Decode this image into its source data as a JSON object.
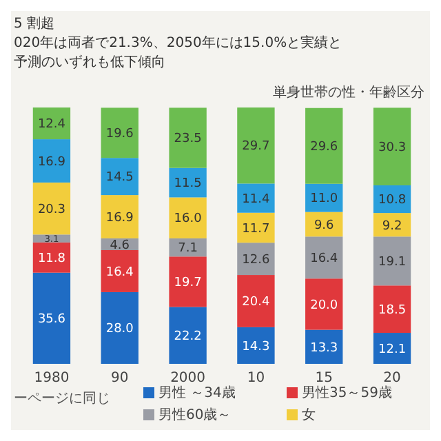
{
  "chart_data": {
    "type": "bar",
    "title": "単身世帯の性・年齢区分",
    "annotations": [
      "5 割超",
      "020年は両者で21.3%、2050年には15.0%と実績と",
      "予測のいずれも低下傾向",
      "ーページに同じ"
    ],
    "categories": [
      "1980",
      "90",
      "2000",
      "10",
      "15",
      "20"
    ],
    "stacked": true,
    "data_labels": true,
    "legend": "bottom",
    "series": [
      {
        "name": "男性 ～34歳",
        "color": "#1f6cc4",
        "values": [
          35.6,
          28.0,
          22.2,
          14.3,
          13.3,
          12.1
        ],
        "value_labels": [
          "35.6",
          "28.0",
          "22.2",
          "14.3",
          "13.3",
          "12.1"
        ]
      },
      {
        "name": "男性35～59歳",
        "color": "#e0383c",
        "values": [
          11.8,
          16.4,
          19.7,
          20.4,
          20.0,
          18.5
        ],
        "value_labels": [
          "11.8",
          "16.4",
          "19.7",
          "20.4",
          "20.0",
          "18.5"
        ]
      },
      {
        "name": "男性60歳～",
        "color": "#9a9da5",
        "values": [
          3.1,
          4.6,
          7.1,
          12.6,
          16.4,
          19.1
        ],
        "value_labels": [
          "3.1",
          "4.6",
          "7.1",
          "12.6",
          "16.4",
          "19.1"
        ]
      },
      {
        "name": "女",
        "color": "#f2cd3c",
        "values": [
          20.3,
          16.9,
          16.0,
          11.7,
          9.6,
          9.2
        ],
        "value_labels": [
          "20.3",
          "16.9",
          "16.0",
          "11.7",
          "9.6",
          "9.2"
        ]
      },
      {
        "color": "#2a9fdc",
        "values": [
          16.9,
          14.5,
          11.5,
          11.4,
          11.0,
          10.8
        ],
        "value_labels": [
          "16.9",
          "14.5",
          "11.5",
          "11.4",
          "11.0",
          "10.8"
        ]
      },
      {
        "color": "#6cbd50",
        "values": [
          12.4,
          19.6,
          23.5,
          29.7,
          29.6,
          30.3
        ],
        "value_labels": [
          "12.4",
          "19.6",
          "23.5",
          "29.7",
          "29.6",
          "30.3"
        ]
      }
    ]
  }
}
